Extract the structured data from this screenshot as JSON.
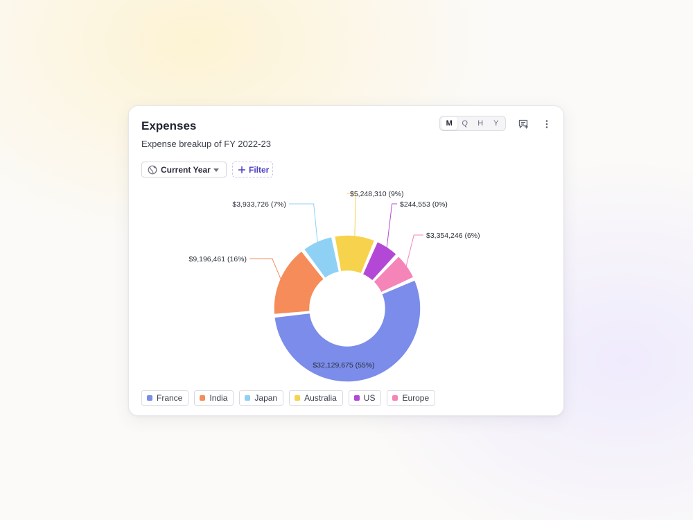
{
  "card": {
    "title": "Expenses",
    "subtitle": "Expense breakup of FY 2022-23"
  },
  "period_toggle": {
    "options": [
      "M",
      "Q",
      "H",
      "Y"
    ],
    "selected": "M"
  },
  "actions": {
    "comment_icon": "comment-add-icon",
    "menu_icon": "more-vertical-icon"
  },
  "filters": {
    "year_select": {
      "icon": "globe-icon",
      "value": "Current Year"
    },
    "filter_button": {
      "icon": "plus-icon",
      "label": "Filter"
    }
  },
  "chart_data": {
    "type": "pie",
    "variant": "donut",
    "title": "",
    "slices": [
      {
        "name": "France",
        "value": 32129675,
        "label": "$32,129,675 (55%)",
        "percent": 55,
        "color": "#7b8cea"
      },
      {
        "name": "India",
        "value": 9196461,
        "label": "$9,196,461 (16%)",
        "percent": 16,
        "color": "#f58c5a"
      },
      {
        "name": "Japan",
        "value": 3933726,
        "label": "$3,933,726 (7%)",
        "percent": 7,
        "color": "#8fd1f5"
      },
      {
        "name": "Australia",
        "value": 5248310,
        "label": "$5,248,310 (9%)",
        "percent": 9,
        "color": "#f7d24d"
      },
      {
        "name": "US",
        "value": 244553,
        "label": "$244,553 (0%)",
        "percent": 0,
        "color": "#b448d6"
      },
      {
        "name": "Europe",
        "value": 3354246,
        "label": "$3,354,246 (6%)",
        "percent": 6,
        "color": "#f585b8"
      }
    ],
    "legend_position": "bottom-left"
  }
}
